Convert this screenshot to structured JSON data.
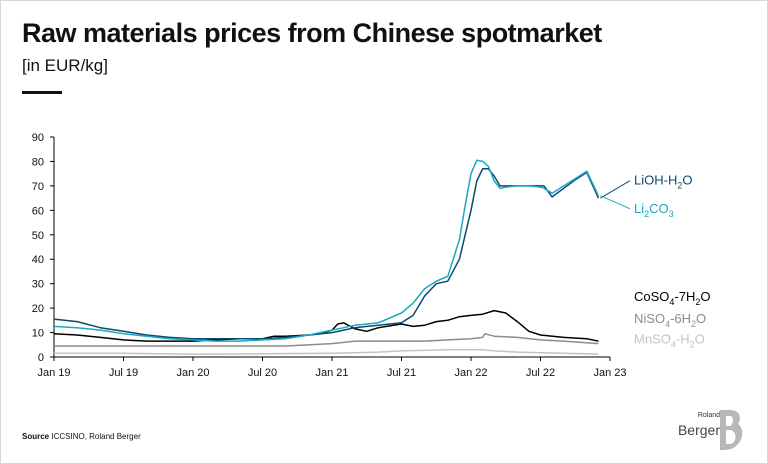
{
  "title": "Raw materials prices from Chinese spotmarket",
  "subtitle": "[in EUR/kg]",
  "source": {
    "label": "Source",
    "text": "ICCSINO, Roland Berger"
  },
  "logo": {
    "line1": "Roland",
    "line2": "Berger"
  },
  "colors": {
    "axis": "#000000",
    "grid": "none"
  },
  "chart_data": {
    "type": "line",
    "title": "Raw materials prices from Chinese spotmarket",
    "ylabel": "[in EUR/kg]",
    "xlabel": "",
    "ylim": [
      0,
      90
    ],
    "yticks": [
      0,
      10,
      20,
      30,
      40,
      50,
      60,
      70,
      80,
      90
    ],
    "xlim": [
      0,
      48
    ],
    "xticks": [
      {
        "x": 0,
        "label": "Jan 19"
      },
      {
        "x": 6,
        "label": "Jul 19"
      },
      {
        "x": 12,
        "label": "Jan 20"
      },
      {
        "x": 18,
        "label": "Jul 20"
      },
      {
        "x": 24,
        "label": "Jan 21"
      },
      {
        "x": 30,
        "label": "Jul 21"
      },
      {
        "x": 36,
        "label": "Jan 22"
      },
      {
        "x": 42,
        "label": "Jul 22"
      },
      {
        "x": 48,
        "label": "Jan 23"
      }
    ],
    "grid": false,
    "legend": "right",
    "x_unit": "months since Jan 19",
    "series": [
      {
        "name": "LiOH-H2O",
        "label_main": "LiOH-H",
        "label_sub": "2",
        "label_tail": "O",
        "color": "#0b4a6e",
        "label_y": 70.5,
        "x": [
          0,
          2,
          4,
          6,
          8,
          10,
          12,
          14,
          16,
          18,
          20,
          22,
          24,
          25,
          26,
          27,
          28,
          29,
          30,
          31,
          32,
          33,
          34,
          35,
          36,
          36.5,
          37,
          37.5,
          38,
          38.5,
          39,
          40,
          41,
          42,
          42.3,
          43,
          44,
          45,
          46,
          47
        ],
        "y": [
          15.5,
          14.5,
          12,
          10.5,
          9,
          8,
          7.5,
          7.5,
          7.5,
          7.5,
          8,
          9,
          10,
          11,
          12,
          12.5,
          13,
          13.5,
          14,
          17,
          25,
          30,
          31,
          40,
          60,
          72,
          77,
          77,
          74,
          70,
          70,
          70,
          70,
          70,
          70,
          65.5,
          69,
          72.5,
          75.5,
          65
        ]
      },
      {
        "name": "Li2CO3",
        "label_main": "Li",
        "label_sub": "2",
        "label_tail": "CO",
        "label_sub2": "3",
        "color": "#1aa9c0",
        "label_y": 59,
        "x": [
          0,
          2,
          4,
          6,
          8,
          10,
          12,
          14,
          16,
          18,
          20,
          22,
          24,
          25,
          26,
          27,
          28,
          29,
          30,
          31,
          32,
          33,
          34,
          35,
          35.5,
          36,
          36.5,
          37,
          37.5,
          38,
          38.5,
          39,
          40,
          41,
          42,
          42.3,
          43,
          44,
          45,
          46,
          47
        ],
        "y": [
          12.5,
          12,
          11,
          9.5,
          8.5,
          7.5,
          7,
          6.5,
          6.5,
          7,
          7.5,
          9,
          11,
          12,
          13,
          13.5,
          14,
          16,
          18,
          22,
          28,
          31,
          33,
          48,
          62,
          75,
          80.5,
          80,
          78,
          72,
          69,
          69.5,
          70,
          70,
          69.5,
          69,
          67,
          70,
          73,
          76,
          66
        ]
      },
      {
        "name": "CoSO4-7H2O",
        "label_main": "CoSO",
        "label_sub": "4",
        "label_tail": "-7H",
        "label_sub2": "2",
        "label_tail2": "O",
        "color": "#000000",
        "label_y": 23,
        "x": [
          0,
          2,
          4,
          6,
          8,
          10,
          12,
          14,
          16,
          18,
          19,
          20,
          22,
          23,
          24,
          24.5,
          25,
          26,
          27,
          28,
          30,
          31,
          32,
          33,
          34,
          35,
          36,
          37,
          38,
          39,
          40,
          41,
          42,
          44,
          46,
          47
        ],
        "y": [
          9.5,
          9,
          8,
          7,
          6.5,
          6.5,
          6.5,
          7,
          7.5,
          7.5,
          8.5,
          8.5,
          9,
          9.5,
          11,
          13.5,
          14,
          11.5,
          10.5,
          12,
          13.5,
          12.5,
          13,
          14.5,
          15,
          16.5,
          17,
          17.5,
          19,
          18,
          14.5,
          10.5,
          9,
          8,
          7.5,
          6.5
        ]
      },
      {
        "name": "NiSO4-6H2O",
        "label_main": "NiSO",
        "label_sub": "4",
        "label_tail": "-6H",
        "label_sub2": "2",
        "label_tail2": "O",
        "color": "#8c8c8c",
        "label_y": 14,
        "x": [
          0,
          4,
          8,
          12,
          16,
          20,
          24,
          26,
          28,
          30,
          32,
          34,
          36,
          37,
          37.2,
          38,
          40,
          42,
          44,
          47
        ],
        "y": [
          4.5,
          4.5,
          4.5,
          4.5,
          4.5,
          4.5,
          5.5,
          6.5,
          6.5,
          6.5,
          6.5,
          7,
          7.5,
          8,
          9.5,
          8.5,
          8,
          7,
          6.5,
          5.5
        ]
      },
      {
        "name": "MnSO4-H2O",
        "label_main": "MnSO",
        "label_sub": "4",
        "label_tail": "-H",
        "label_sub2": "2",
        "label_tail2": "O",
        "color": "#c3c3c3",
        "label_y": 5.5,
        "x": [
          0,
          6,
          12,
          18,
          24,
          28,
          30,
          34,
          37,
          38,
          40,
          44,
          47
        ],
        "y": [
          1.5,
          1.5,
          1.2,
          1.3,
          1.5,
          2,
          2.5,
          3,
          3,
          2.5,
          2,
          1.5,
          1.2
        ]
      }
    ]
  }
}
